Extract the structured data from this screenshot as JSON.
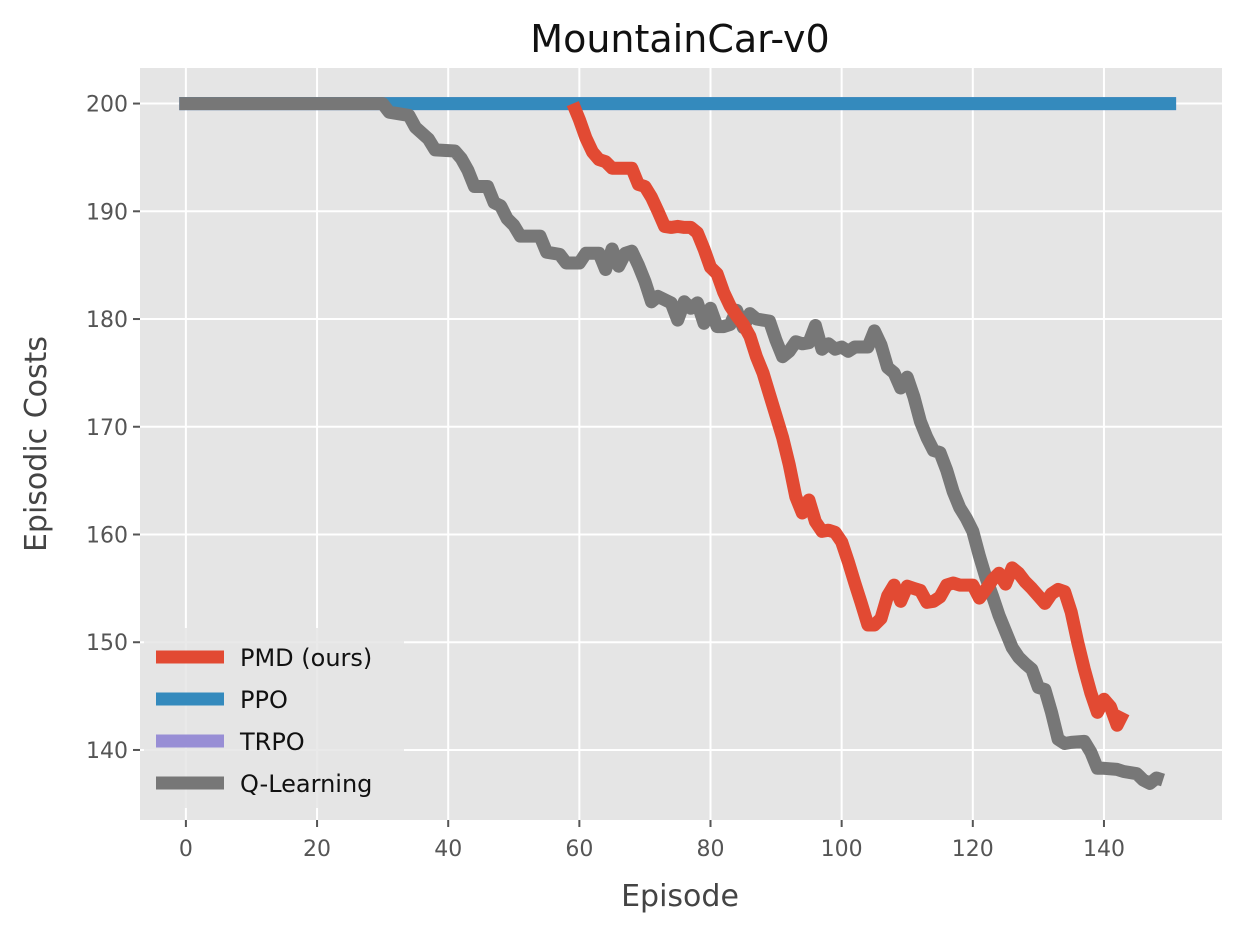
{
  "chart_data": {
    "type": "line",
    "title": "MountainCar-v0",
    "xlabel": "Episode",
    "ylabel": "Episodic Costs",
    "xlim": [
      -7,
      158
    ],
    "ylim": [
      133.5,
      203.3
    ],
    "xticks": [
      0,
      20,
      40,
      60,
      80,
      100,
      120,
      140
    ],
    "yticks": [
      140,
      150,
      160,
      170,
      180,
      190,
      200
    ],
    "grid": true,
    "legend_position": "lower-left",
    "series": [
      {
        "name": "TRPO",
        "color": "#988ed5",
        "points": [
          [
            -1,
            200
          ],
          [
            151,
            200
          ]
        ]
      },
      {
        "name": "PPO",
        "color": "#348abd",
        "points": [
          [
            -1,
            200
          ],
          [
            151,
            200
          ]
        ]
      },
      {
        "name": "Q-Learning",
        "color": "#777777",
        "points": [
          [
            -1,
            200
          ],
          [
            30,
            200
          ],
          [
            31,
            199.2
          ],
          [
            34,
            198.9
          ],
          [
            35,
            197.8
          ],
          [
            37,
            196.7
          ],
          [
            38,
            195.7
          ],
          [
            41,
            195.6
          ],
          [
            42,
            194.9
          ],
          [
            43,
            193.8
          ],
          [
            44,
            192.3
          ],
          [
            46,
            192.3
          ],
          [
            47,
            190.8
          ],
          [
            48,
            190.5
          ],
          [
            49,
            189.3
          ],
          [
            50,
            188.7
          ],
          [
            51,
            187.7
          ],
          [
            54,
            187.7
          ],
          [
            55,
            186.2
          ],
          [
            57,
            186.0
          ],
          [
            58,
            185.2
          ],
          [
            60,
            185.2
          ],
          [
            61,
            186.1
          ],
          [
            63,
            186.1
          ],
          [
            64,
            184.6
          ],
          [
            65,
            186.5
          ],
          [
            66,
            184.9
          ],
          [
            67,
            186.1
          ],
          [
            68,
            186.3
          ],
          [
            69,
            185.0
          ],
          [
            70,
            183.5
          ],
          [
            71,
            181.6
          ],
          [
            72,
            182.1
          ],
          [
            74,
            181.5
          ],
          [
            75,
            179.9
          ],
          [
            76,
            181.6
          ],
          [
            77,
            181.0
          ],
          [
            78,
            181.5
          ],
          [
            79,
            179.6
          ],
          [
            80,
            181.0
          ],
          [
            81,
            179.3
          ],
          [
            82,
            179.3
          ],
          [
            83,
            179.5
          ],
          [
            84,
            180.8
          ],
          [
            85,
            179.2
          ],
          [
            86,
            180.5
          ],
          [
            87,
            180.0
          ],
          [
            89,
            179.8
          ],
          [
            90,
            178.0
          ],
          [
            91,
            176.5
          ],
          [
            92,
            177.0
          ],
          [
            93,
            177.9
          ],
          [
            94,
            177.7
          ],
          [
            95,
            177.8
          ],
          [
            96,
            179.4
          ],
          [
            97,
            177.2
          ],
          [
            98,
            177.7
          ],
          [
            99,
            177.2
          ],
          [
            100,
            177.4
          ],
          [
            101,
            177.0
          ],
          [
            102,
            177.4
          ],
          [
            104,
            177.4
          ],
          [
            105,
            178.9
          ],
          [
            106,
            177.6
          ],
          [
            107,
            175.5
          ],
          [
            108,
            175.0
          ],
          [
            109,
            173.6
          ],
          [
            110,
            174.6
          ],
          [
            111,
            172.8
          ],
          [
            112,
            170.5
          ],
          [
            113,
            169.0
          ],
          [
            114,
            167.8
          ],
          [
            115,
            167.6
          ],
          [
            116,
            166.0
          ],
          [
            117,
            164.0
          ],
          [
            118,
            162.5
          ],
          [
            119,
            161.5
          ],
          [
            120,
            160.3
          ],
          [
            121,
            158.0
          ],
          [
            122,
            156.0
          ],
          [
            123,
            154.3
          ],
          [
            124,
            152.5
          ],
          [
            125,
            151.0
          ],
          [
            126,
            149.5
          ],
          [
            127,
            148.6
          ],
          [
            128,
            148.0
          ],
          [
            129,
            147.5
          ],
          [
            130,
            145.8
          ],
          [
            131,
            145.6
          ],
          [
            132,
            143.5
          ],
          [
            133,
            141.0
          ],
          [
            134,
            140.6
          ],
          [
            135,
            140.7
          ],
          [
            137,
            140.8
          ],
          [
            138,
            139.8
          ],
          [
            139,
            138.3
          ],
          [
            140,
            138.3
          ],
          [
            142,
            138.2
          ],
          [
            143,
            138.0
          ],
          [
            145,
            137.8
          ],
          [
            146,
            137.2
          ],
          [
            147,
            136.9
          ],
          [
            148,
            137.4
          ],
          [
            149,
            137.2
          ]
        ]
      },
      {
        "name": "PMD (ours)",
        "color": "#e24a33",
        "points": [
          [
            59,
            200
          ],
          [
            60,
            198.5
          ],
          [
            61,
            196.8
          ],
          [
            62,
            195.5
          ],
          [
            63,
            194.8
          ],
          [
            64,
            194.6
          ],
          [
            65,
            194.0
          ],
          [
            66,
            194.0
          ],
          [
            68,
            194.0
          ],
          [
            69,
            192.5
          ],
          [
            70,
            192.3
          ],
          [
            71,
            191.3
          ],
          [
            72,
            190.0
          ],
          [
            73,
            188.6
          ],
          [
            74,
            188.5
          ],
          [
            75,
            188.6
          ],
          [
            76,
            188.5
          ],
          [
            77,
            188.5
          ],
          [
            78,
            188.0
          ],
          [
            79,
            186.5
          ],
          [
            80,
            184.8
          ],
          [
            81,
            184.2
          ],
          [
            82,
            182.5
          ],
          [
            83,
            181.2
          ],
          [
            84,
            180.3
          ],
          [
            85,
            179.5
          ],
          [
            86,
            178.4
          ],
          [
            87,
            176.5
          ],
          [
            88,
            175.0
          ],
          [
            89,
            173.0
          ],
          [
            90,
            171.0
          ],
          [
            91,
            169.0
          ],
          [
            92,
            166.5
          ],
          [
            93,
            163.5
          ],
          [
            94,
            162.0
          ],
          [
            95,
            163.2
          ],
          [
            96,
            161.2
          ],
          [
            97,
            160.3
          ],
          [
            98,
            160.4
          ],
          [
            99,
            160.2
          ],
          [
            100,
            159.3
          ],
          [
            101,
            157.5
          ],
          [
            102,
            155.5
          ],
          [
            103,
            153.6
          ],
          [
            104,
            151.6
          ],
          [
            105,
            151.6
          ],
          [
            106,
            152.2
          ],
          [
            107,
            154.3
          ],
          [
            108,
            155.3
          ],
          [
            109,
            153.8
          ],
          [
            110,
            155.2
          ],
          [
            111,
            155.0
          ],
          [
            112,
            154.8
          ],
          [
            113,
            153.7
          ],
          [
            114,
            153.8
          ],
          [
            115,
            154.2
          ],
          [
            116,
            155.3
          ],
          [
            117,
            155.5
          ],
          [
            118,
            155.3
          ],
          [
            119,
            155.3
          ],
          [
            120,
            155.3
          ],
          [
            121,
            154.1
          ],
          [
            122,
            154.9
          ],
          [
            123,
            155.8
          ],
          [
            124,
            156.4
          ],
          [
            125,
            155.4
          ],
          [
            126,
            156.9
          ],
          [
            127,
            156.4
          ],
          [
            128,
            155.6
          ],
          [
            129,
            155.0
          ],
          [
            130,
            154.3
          ],
          [
            131,
            153.6
          ],
          [
            132,
            154.5
          ],
          [
            133,
            154.9
          ],
          [
            134,
            154.7
          ],
          [
            135,
            152.8
          ],
          [
            136,
            150.0
          ],
          [
            137,
            147.5
          ],
          [
            138,
            145.3
          ],
          [
            139,
            143.5
          ],
          [
            140,
            144.7
          ],
          [
            141,
            144.0
          ],
          [
            142,
            142.3
          ],
          [
            143,
            143.5
          ]
        ]
      }
    ],
    "legend": [
      "PMD (ours)",
      "PPO",
      "TRPO",
      "Q-Learning"
    ]
  }
}
